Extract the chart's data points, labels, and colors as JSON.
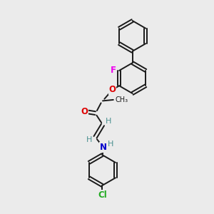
{
  "background_color": "#ebebeb",
  "bond_color": "#1a1a1a",
  "atom_colors": {
    "F": "#ee00ee",
    "O": "#dd0000",
    "N": "#0000cc",
    "Cl": "#22aa22",
    "H": "#4a9090",
    "C": "#1a1a1a"
  },
  "figsize": [
    3.0,
    3.0
  ],
  "dpi": 100,
  "lw": 1.4,
  "r_ring": 0.72
}
